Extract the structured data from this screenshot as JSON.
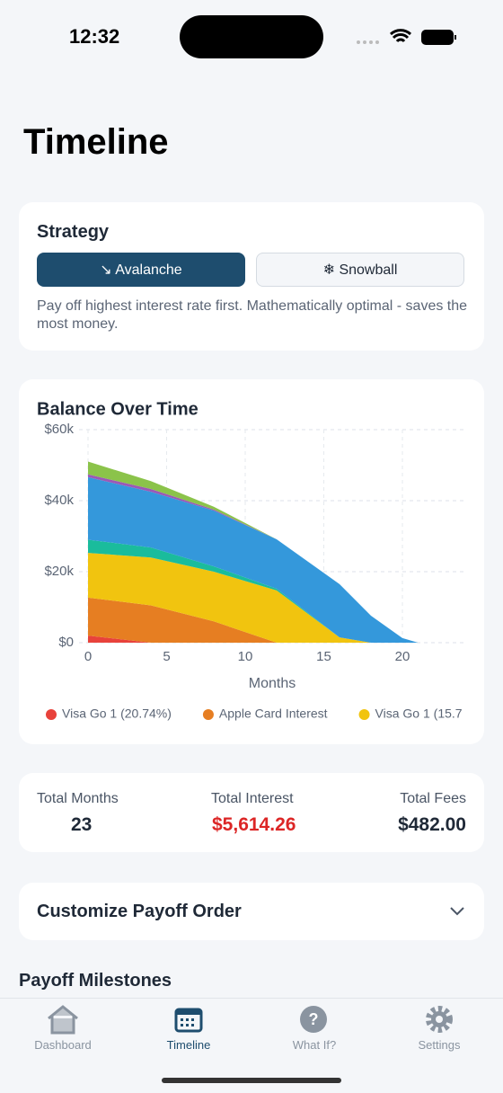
{
  "status": {
    "time": "12:32"
  },
  "header": {
    "title": "Timeline"
  },
  "strategy": {
    "title": "Strategy",
    "options": [
      "↘ Avalanche",
      "❄ Snowball"
    ],
    "description": "Pay off highest interest rate first. Mathematically optimal - saves the most money."
  },
  "chart_data": {
    "type": "area",
    "stacked": true,
    "title": "Balance Over Time",
    "x_label": "Months",
    "x": [
      0,
      4,
      8,
      12,
      16,
      18,
      20,
      21
    ],
    "xlim": [
      0,
      24
    ],
    "xticks": [
      0,
      5,
      10,
      15,
      20
    ],
    "ylim": [
      0,
      60000
    ],
    "yticks": [
      {
        "value": 0,
        "label": "$0"
      },
      {
        "value": 20000,
        "label": "$20k"
      },
      {
        "value": 40000,
        "label": "$40k"
      },
      {
        "value": 60000,
        "label": "$60k"
      }
    ],
    "grid": true,
    "series": [
      {
        "name": "Visa Go 1 (20.74%)",
        "color": "#e8423b",
        "values": [
          2000,
          0,
          0,
          0,
          0,
          0,
          0,
          0
        ]
      },
      {
        "name": "Apple Card Interest",
        "color": "#e67e22",
        "values": [
          10700,
          10500,
          6000,
          0,
          0,
          0,
          0,
          0
        ]
      },
      {
        "name": "Visa Go 1 (15.7",
        "color": "#f1c40f",
        "values": [
          12600,
          13500,
          14000,
          14700,
          1500,
          0,
          0,
          0
        ]
      },
      {
        "color": "#1abc9c",
        "values": [
          3700,
          2800,
          1500,
          500,
          0,
          0,
          0,
          0
        ]
      },
      {
        "color": "#3498db",
        "values": [
          17600,
          15700,
          15700,
          13900,
          15000,
          7600,
          1300,
          0
        ]
      },
      {
        "color": "#9b59b6",
        "values": [
          800,
          800,
          300,
          0,
          0,
          0,
          0,
          0
        ]
      },
      {
        "color": "#8bc34a",
        "values": [
          3600,
          2200,
          800,
          0,
          0,
          0,
          0,
          0
        ]
      }
    ]
  },
  "summary": [
    {
      "label": "Total Months",
      "value": "23"
    },
    {
      "label": "Total Interest",
      "value": "$5,614.26"
    },
    {
      "label": "Total Fees",
      "value": "$482.00"
    }
  ],
  "customize": {
    "title": "Customize Payoff Order"
  },
  "milestones": {
    "title": "Payoff Milestones"
  },
  "tabs": [
    "Dashboard",
    "Timeline",
    "What If?",
    "Settings"
  ]
}
